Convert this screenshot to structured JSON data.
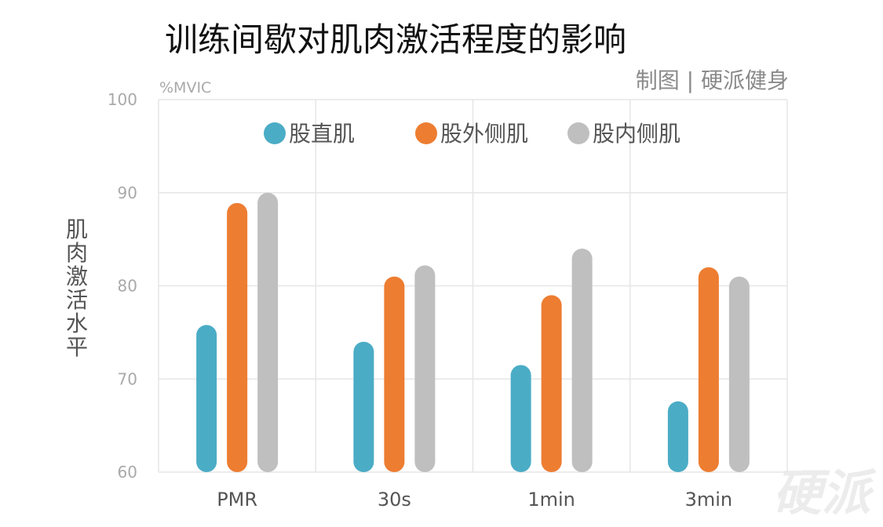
{
  "chart_data": {
    "type": "bar",
    "title": "训练间歇对肌肉激活程度的影响",
    "credit": "制图 | 硬派健身",
    "unit_label": "%MVIC",
    "ylabel": "肌肉激活水平",
    "xlabel": "",
    "categories": [
      "PMR",
      "30s",
      "1min",
      "3min"
    ],
    "ylim": [
      60,
      100
    ],
    "yticks": [
      60,
      70,
      80,
      90,
      100
    ],
    "grid": true,
    "legend_position": "top",
    "series": [
      {
        "name": "股直肌",
        "color": "#4bacc6",
        "values": [
          75.8,
          74.0,
          71.5,
          67.6
        ]
      },
      {
        "name": "股外侧肌",
        "color": "#ed7d31",
        "values": [
          88.9,
          81.0,
          79.0,
          82.0
        ]
      },
      {
        "name": "股内侧肌",
        "color": "#bfbfbf",
        "values": [
          90.0,
          82.2,
          84.0,
          81.0
        ]
      }
    ]
  },
  "watermark": "硬派"
}
